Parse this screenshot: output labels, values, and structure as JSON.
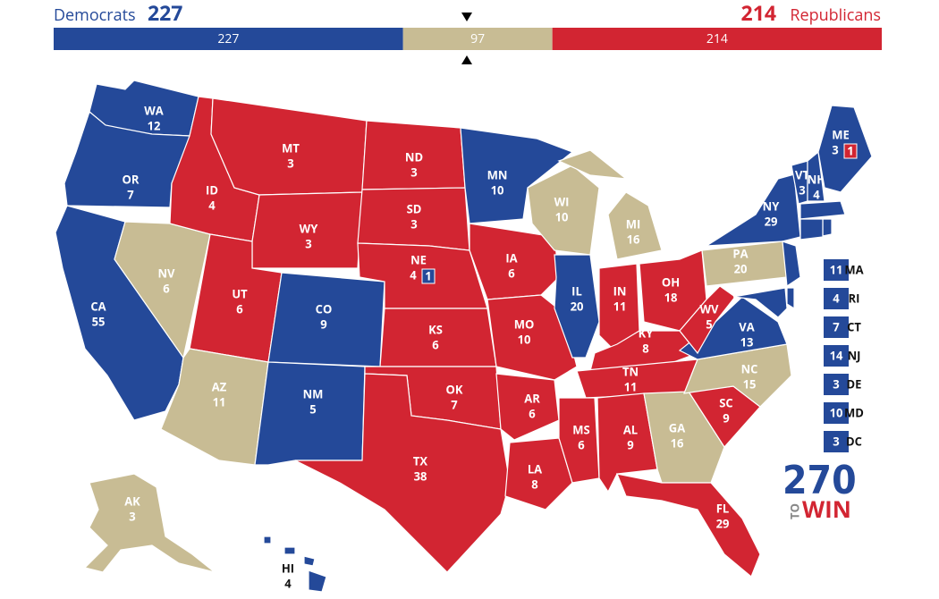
{
  "header": {
    "dem_label": "Democrats",
    "rep_label": "Republicans"
  },
  "colors": {
    "dem": "#244999",
    "rep": "#d22532",
    "tossup": "#c8bc94"
  },
  "bar": {
    "segments": [
      {
        "party": "dem",
        "value": 227
      },
      {
        "party": "tossup",
        "value": 97
      },
      {
        "party": "rep",
        "value": 214
      }
    ]
  },
  "states": [
    {
      "abbr": "WA",
      "votes": 12,
      "party": "dem"
    },
    {
      "abbr": "OR",
      "votes": 7,
      "party": "dem"
    },
    {
      "abbr": "CA",
      "votes": 55,
      "party": "dem"
    },
    {
      "abbr": "NV",
      "votes": 6,
      "party": "tossup"
    },
    {
      "abbr": "ID",
      "votes": 4,
      "party": "rep"
    },
    {
      "abbr": "MT",
      "votes": 3,
      "party": "rep"
    },
    {
      "abbr": "WY",
      "votes": 3,
      "party": "rep"
    },
    {
      "abbr": "UT",
      "votes": 6,
      "party": "rep"
    },
    {
      "abbr": "AZ",
      "votes": 11,
      "party": "tossup"
    },
    {
      "abbr": "CO",
      "votes": 9,
      "party": "dem"
    },
    {
      "abbr": "NM",
      "votes": 5,
      "party": "dem"
    },
    {
      "abbr": "ND",
      "votes": 3,
      "party": "rep"
    },
    {
      "abbr": "SD",
      "votes": 3,
      "party": "rep"
    },
    {
      "abbr": "NE",
      "votes": 4,
      "party": "rep",
      "split": {
        "votes": 1,
        "party": "dem"
      }
    },
    {
      "abbr": "KS",
      "votes": 6,
      "party": "rep"
    },
    {
      "abbr": "OK",
      "votes": 7,
      "party": "rep"
    },
    {
      "abbr": "TX",
      "votes": 38,
      "party": "rep"
    },
    {
      "abbr": "MN",
      "votes": 10,
      "party": "dem"
    },
    {
      "abbr": "IA",
      "votes": 6,
      "party": "rep"
    },
    {
      "abbr": "MO",
      "votes": 10,
      "party": "rep"
    },
    {
      "abbr": "AR",
      "votes": 6,
      "party": "rep"
    },
    {
      "abbr": "LA",
      "votes": 8,
      "party": "rep"
    },
    {
      "abbr": "WI",
      "votes": 10,
      "party": "tossup"
    },
    {
      "abbr": "IL",
      "votes": 20,
      "party": "dem"
    },
    {
      "abbr": "MI",
      "votes": 16,
      "party": "tossup"
    },
    {
      "abbr": "IN",
      "votes": 11,
      "party": "rep"
    },
    {
      "abbr": "OH",
      "votes": 18,
      "party": "rep"
    },
    {
      "abbr": "KY",
      "votes": 8,
      "party": "rep"
    },
    {
      "abbr": "TN",
      "votes": 11,
      "party": "rep"
    },
    {
      "abbr": "MS",
      "votes": 6,
      "party": "rep"
    },
    {
      "abbr": "AL",
      "votes": 9,
      "party": "rep"
    },
    {
      "abbr": "GA",
      "votes": 16,
      "party": "tossup"
    },
    {
      "abbr": "FL",
      "votes": 29,
      "party": "rep"
    },
    {
      "abbr": "SC",
      "votes": 9,
      "party": "rep"
    },
    {
      "abbr": "NC",
      "votes": 15,
      "party": "tossup"
    },
    {
      "abbr": "VA",
      "votes": 13,
      "party": "dem"
    },
    {
      "abbr": "WV",
      "votes": 5,
      "party": "rep"
    },
    {
      "abbr": "PA",
      "votes": 20,
      "party": "tossup"
    },
    {
      "abbr": "NY",
      "votes": 29,
      "party": "dem"
    },
    {
      "abbr": "VT",
      "votes": 3,
      "party": "dem"
    },
    {
      "abbr": "NH",
      "votes": 4,
      "party": "dem"
    },
    {
      "abbr": "ME",
      "votes": 3,
      "party": "dem",
      "split": {
        "votes": 1,
        "party": "rep"
      }
    },
    {
      "abbr": "AK",
      "votes": 3,
      "party": "tossup"
    },
    {
      "abbr": "HI",
      "votes": 4,
      "party": "dem"
    }
  ],
  "small_states": [
    {
      "abbr": "MA",
      "votes": 11,
      "party": "dem"
    },
    {
      "abbr": "RI",
      "votes": 4,
      "party": "dem"
    },
    {
      "abbr": "CT",
      "votes": 7,
      "party": "dem"
    },
    {
      "abbr": "NJ",
      "votes": 14,
      "party": "dem"
    },
    {
      "abbr": "DE",
      "votes": 3,
      "party": "dem"
    },
    {
      "abbr": "MD",
      "votes": 10,
      "party": "dem"
    },
    {
      "abbr": "DC",
      "votes": 3,
      "party": "dem"
    }
  ],
  "logo": {
    "number": "270",
    "to": "TO",
    "win": "WIN"
  }
}
